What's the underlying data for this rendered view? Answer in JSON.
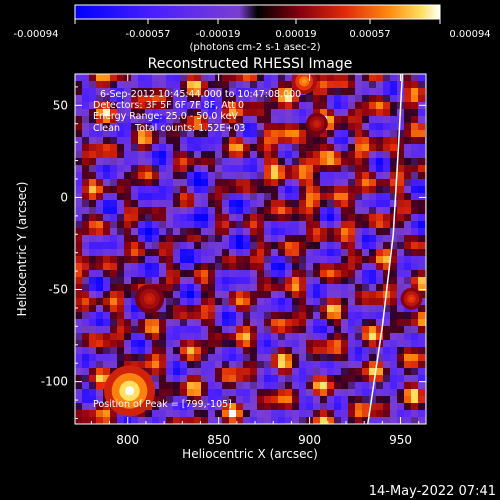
{
  "colorbar": {
    "tick_labels": [
      "-0.00094",
      "-0.00057",
      "-0.00019",
      "0.00019",
      "0.00057",
      "0.00094"
    ],
    "units_label": "(photons cm-2 s-1 asec-2)"
  },
  "chart_data": {
    "type": "heatmap",
    "title": "Reconstructed RHESSI Image",
    "xlabel": "Heliocentric X (arcsec)",
    "ylabel": "Heliocentric Y (arcsec)",
    "xlim": [
      771,
      964
    ],
    "ylim": [
      -123,
      67
    ],
    "x_ticks": [
      800,
      850,
      900,
      950
    ],
    "y_ticks": [
      -100,
      -50,
      0,
      50
    ],
    "colorscale": {
      "min": -0.00094,
      "max": 0.00094
    },
    "annotations": [
      "6-Sep-2012 10:45:44.000 to 10:47:08.000",
      "Detectors: 3F 5F 6F 7F 8F, Att 0",
      "Energy Range: 25.0 - 50.0 keV",
      "Clean     Total counts: 1.52E+03"
    ],
    "peak_label": "Position of Peak = [799,-105]",
    "peak_position": [
      799,
      -105
    ],
    "limb": [
      [
        951,
        67
      ],
      [
        949,
        30
      ],
      [
        946,
        -20
      ],
      [
        940,
        -70
      ],
      [
        932,
        -123
      ]
    ],
    "bright_sources": [
      {
        "x": 801,
        "y": -105,
        "r": 14,
        "level": 1.0
      },
      {
        "x": 897,
        "y": 63,
        "r": 7,
        "level": 0.75
      },
      {
        "x": 956,
        "y": -55,
        "r": 6,
        "level": 0.55
      },
      {
        "x": 812,
        "y": -55,
        "r": 8,
        "level": 0.45
      },
      {
        "x": 904,
        "y": 40,
        "r": 6,
        "level": 0.45
      }
    ]
  },
  "timestamp": "14-May-2022 07:41"
}
